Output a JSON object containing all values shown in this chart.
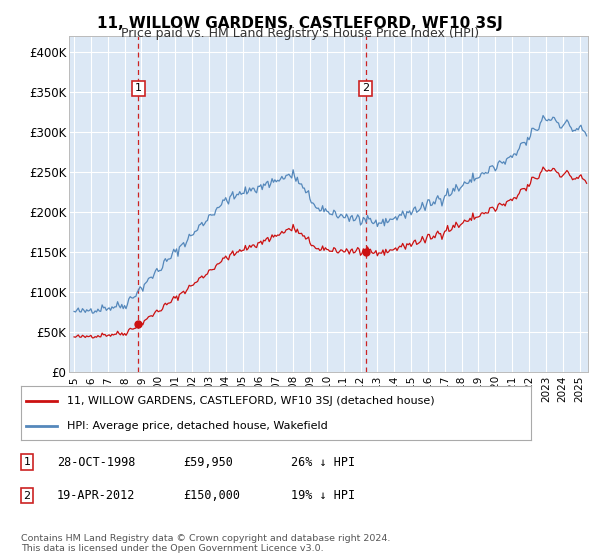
{
  "title": "11, WILLOW GARDENS, CASTLEFORD, WF10 3SJ",
  "subtitle": "Price paid vs. HM Land Registry's House Price Index (HPI)",
  "footer": "Contains HM Land Registry data © Crown copyright and database right 2024.\nThis data is licensed under the Open Government Licence v3.0.",
  "legend_line1": "11, WILLOW GARDENS, CASTLEFORD, WF10 3SJ (detached house)",
  "legend_line2": "HPI: Average price, detached house, Wakefield",
  "sale1_label": "1",
  "sale1_date": "28-OCT-1998",
  "sale1_price": "£59,950",
  "sale1_hpi": "26% ↓ HPI",
  "sale2_label": "2",
  "sale2_date": "19-APR-2012",
  "sale2_price": "£150,000",
  "sale2_hpi": "19% ↓ HPI",
  "sale1_x": 1998.82,
  "sale1_y": 59950,
  "sale2_x": 2012.3,
  "sale2_y": 150000,
  "hpi_color": "#5588bb",
  "property_color": "#cc1111",
  "vline_color": "#cc2222",
  "bg_color": "#dce8f5",
  "ylim": [
    0,
    420000
  ],
  "xlim_left": 1994.7,
  "xlim_right": 2025.5
}
